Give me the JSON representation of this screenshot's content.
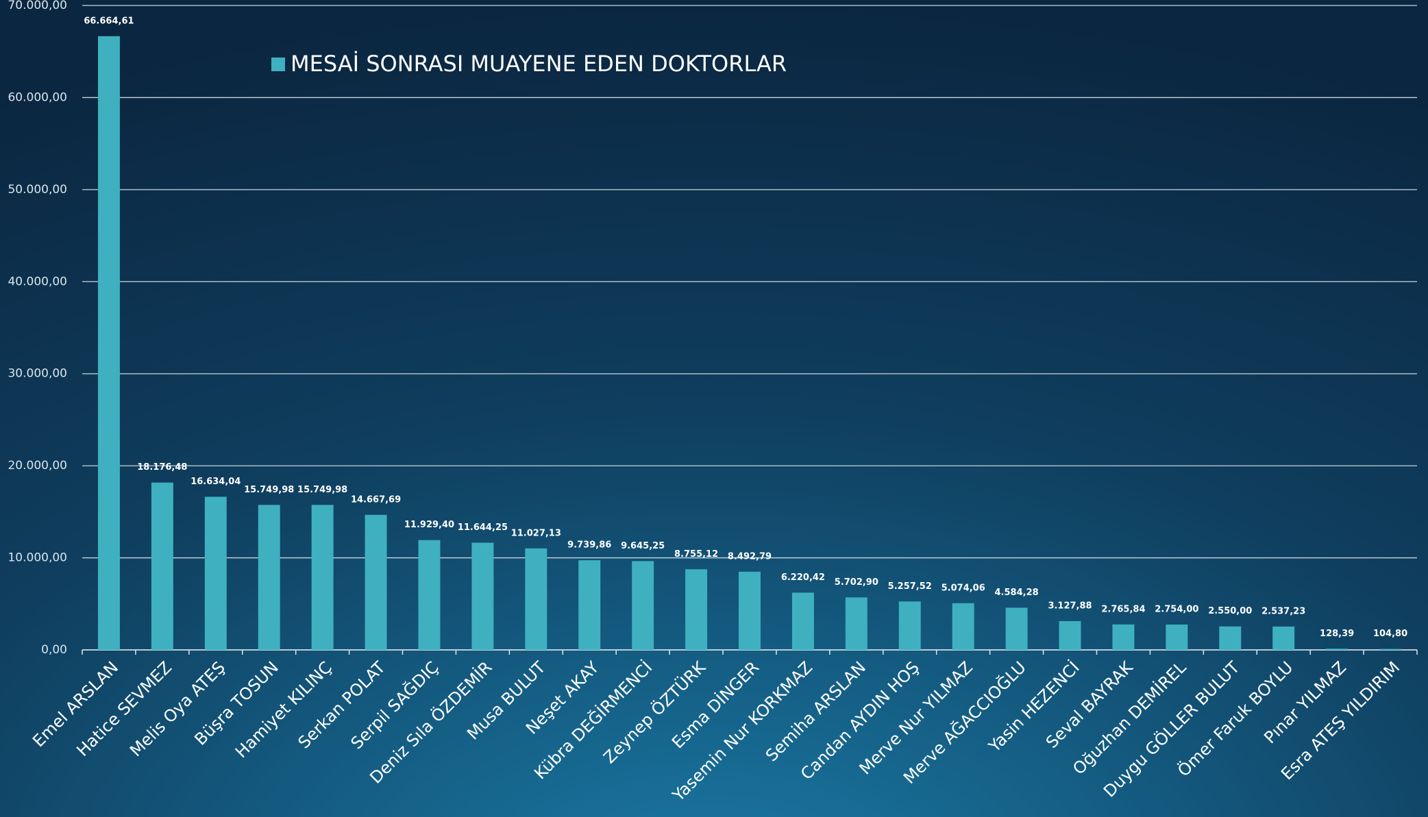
{
  "chart_data": {
    "type": "bar",
    "categories": [
      "Emel ARSLAN",
      "Hatice SEVMEZ",
      "Melis Oya ATEŞ",
      "Büşra TOSUN",
      "Hamiyet KILINÇ",
      "Serkan POLAT",
      "Serpil SAĞDIÇ",
      "Deniz Sıla ÖZDEMİR",
      "Musa BULUT",
      "Neşet AKAY",
      "Kübra DEĞİRMENCİ",
      "Zeynep ÖZTÜRK",
      "Esma DİNGER",
      "Yasemin Nur KORKMAZ",
      "Semiha ARSLAN",
      "Candan AYDIN HOŞ",
      "Merve Nur YILMAZ",
      "Merve AĞACCIOĞLU",
      "Yasin HEZENCİ",
      "Seval BAYRAK",
      "Oğuzhan DEMİREL",
      "Duygu GÖLLER BULUT",
      "Ömer Faruk BOYLU",
      "Pınar YILMAZ",
      "Esra ATEŞ YILDIRIM"
    ],
    "series": [
      {
        "name": "MESAİ SONRASI MUAYENE EDEN DOKTORLAR",
        "color": "#3fb0c0",
        "values": [
          66664.61,
          18176.48,
          16634.04,
          15749.98,
          15749.98,
          14667.69,
          11929.4,
          11644.25,
          11027.13,
          9739.86,
          9645.25,
          8755.12,
          8492.79,
          6220.42,
          5702.9,
          5257.52,
          5074.06,
          4584.28,
          3127.88,
          2765.84,
          2754.0,
          2550.0,
          2537.23,
          128.39,
          104.8
        ],
        "value_labels": [
          "66.664,61",
          "18.176,48",
          "16.634,04",
          "15.749,98",
          "15.749,98",
          "14.667,69",
          "11.929,40",
          "11.644,25",
          "11.027,13",
          "9.739,86",
          "9.645,25",
          "8.755,12",
          "8.492,79",
          "6.220,42",
          "5.702,90",
          "5.257,52",
          "5.074,06",
          "4.584,28",
          "3.127,88",
          "2.765,84",
          "2.754,00",
          "2.550,00",
          "2.537,23",
          "128,39",
          "104,80"
        ]
      }
    ],
    "ylim": [
      0,
      70000
    ],
    "yticks": [
      {
        "value": 0,
        "label": "0,00"
      },
      {
        "value": 10000,
        "label": "10.000,00"
      },
      {
        "value": 20000,
        "label": "20.000,00"
      },
      {
        "value": 30000,
        "label": "30.000,00"
      },
      {
        "value": 40000,
        "label": "40.000,00"
      },
      {
        "value": 50000,
        "label": "50.000,00"
      },
      {
        "value": 60000,
        "label": "60.000,00"
      },
      {
        "value": 70000,
        "label": "70.000,00"
      }
    ],
    "grid": true
  }
}
